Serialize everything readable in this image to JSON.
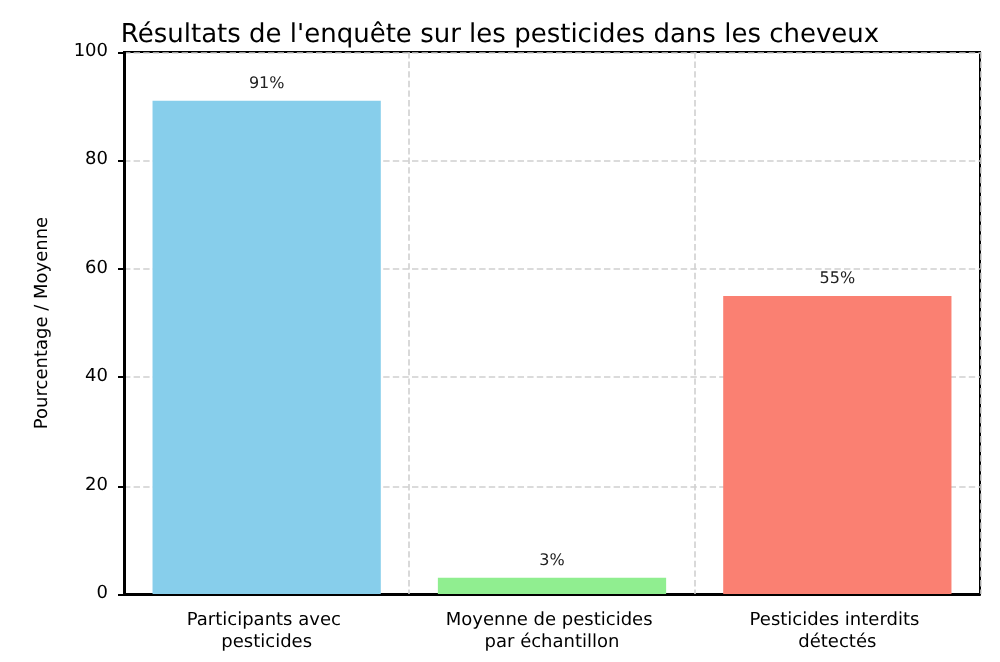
{
  "chart_data": {
    "type": "bar",
    "title": "Résultats de l'enquête sur les pesticides dans les cheveux",
    "ylabel": "Pourcentage / Moyenne",
    "categories": [
      "Participants avec pesticides",
      "Moyenne de pesticides par échantillon",
      "Pesticides interdits détectés"
    ],
    "values": [
      91,
      3,
      55
    ],
    "colors": [
      "#87ceeb",
      "#90ee90",
      "#fa8072"
    ],
    "value_labels": [
      "91%",
      "3%",
      "55%"
    ],
    "ylim": [
      0,
      100
    ],
    "yticks": [
      0,
      20,
      40,
      60,
      80,
      100
    ],
    "grid": true
  }
}
